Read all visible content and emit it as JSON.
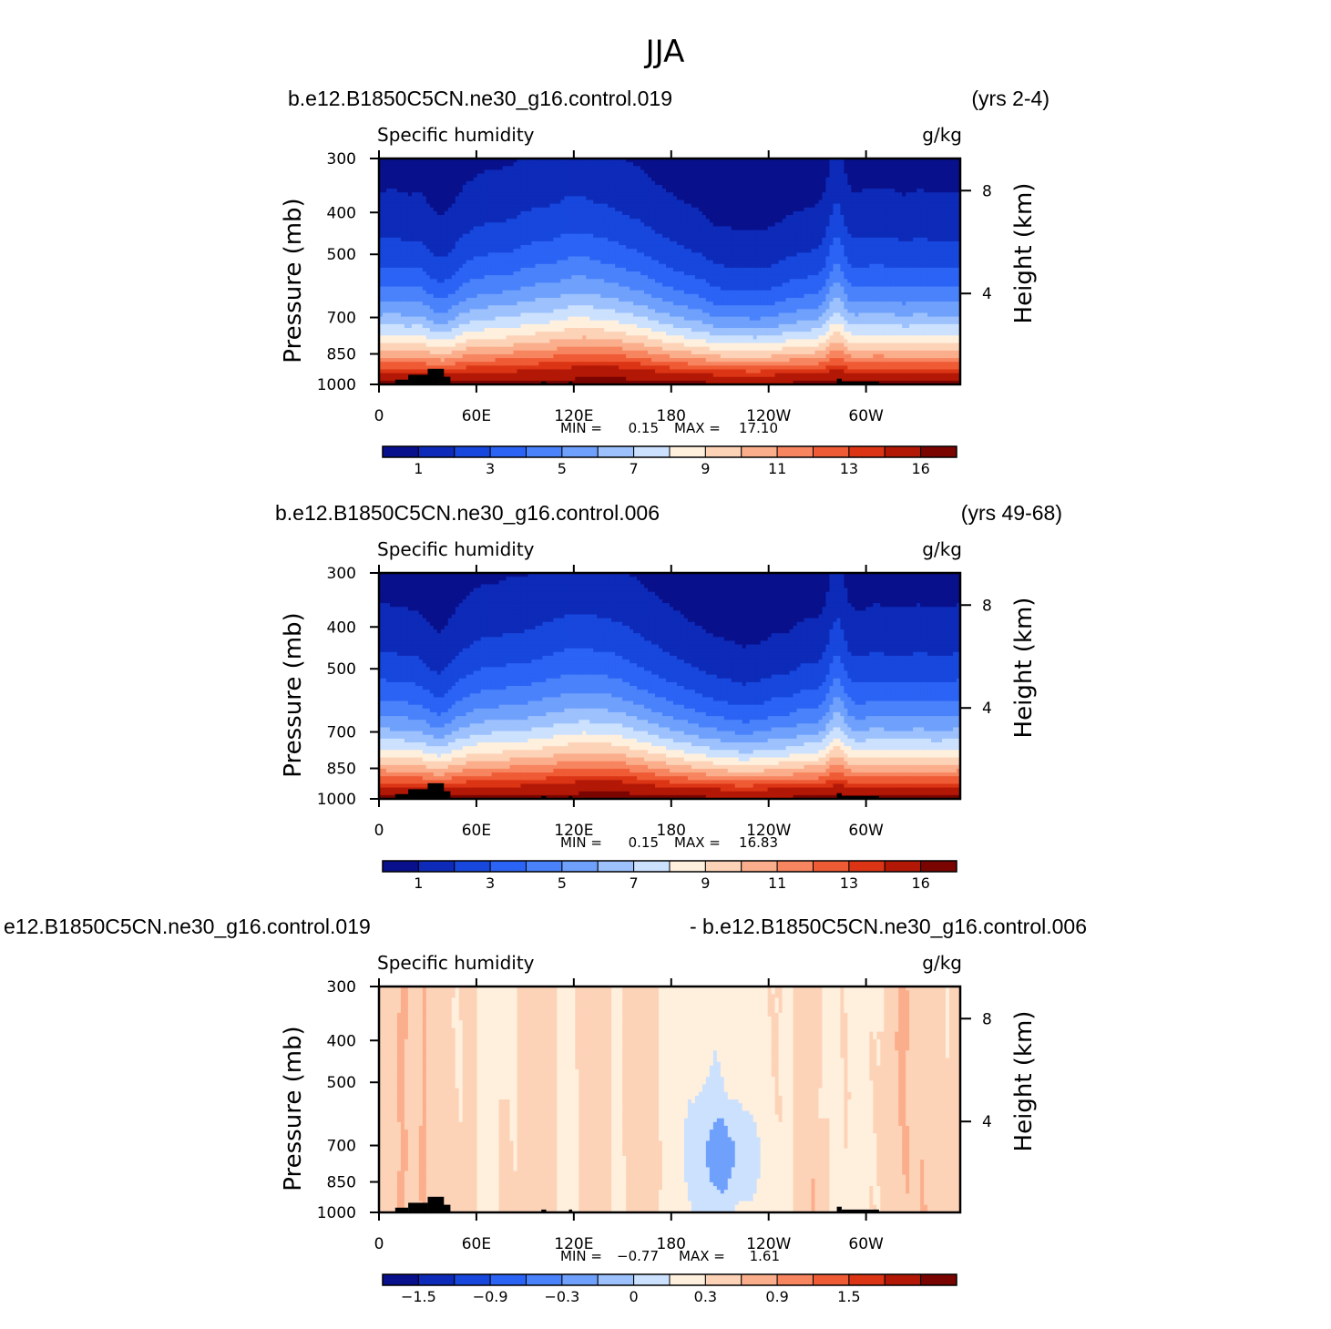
{
  "figure": {
    "title": "JJA"
  },
  "panels": [
    {
      "case_name": "b.e12.B1850C5CN.ne30_g16.control.019",
      "years": "(yrs 2-4)",
      "variable": "Specific humidity",
      "units": "g/kg",
      "ylabel_left": "Pressure (mb)",
      "ylabel_right": "Height (km)",
      "stats": {
        "min_label": "MIN =",
        "min": "0.15",
        "max_label": "MAX =",
        "max": "17.10"
      }
    },
    {
      "case_name": "b.e12.B1850C5CN.ne30_g16.control.006",
      "years": "(yrs 49-68)",
      "variable": "Specific humidity",
      "units": "g/kg",
      "ylabel_left": "Pressure (mb)",
      "ylabel_right": "Height (km)",
      "stats": {
        "min_label": "MIN =",
        "min": "0.15",
        "max_label": "MAX =",
        "max": "16.83"
      }
    },
    {
      "case_name": "e12.B1850C5CN.ne30_g16.control.019",
      "years": "- b.e12.B1850C5CN.ne30_g16.control.006",
      "variable": "Specific humidity",
      "units": "g/kg",
      "ylabel_left": "Pressure (mb)",
      "ylabel_right": "Height (km)",
      "stats": {
        "min_label": "MIN =",
        "min": "−0.77",
        "max_label": "MAX =",
        "max": "1.61"
      }
    }
  ],
  "colors": {
    "palette": [
      "#08108c",
      "#0d2ab8",
      "#1747dc",
      "#2b63f5",
      "#4a82fb",
      "#6fa1fc",
      "#9cc1fd",
      "#cce1fe",
      "#fff0de",
      "#fdd3b8",
      "#fbae8c",
      "#f78560",
      "#ef5b35",
      "#db3515",
      "#b31806",
      "#7a0500"
    ],
    "terrain": "#000000"
  },
  "chart_data": [
    {
      "type": "contour",
      "title": "Specific humidity",
      "units": "g/kg",
      "x_ticks": [
        "0",
        "60E",
        "120E",
        "180",
        "120W",
        "60W"
      ],
      "y_ticks_left": [
        "300",
        "400",
        "500",
        "700",
        "850",
        "1000"
      ],
      "y_ticks_right": [
        "8",
        "4"
      ],
      "ylim": [
        1000,
        300
      ],
      "y_scale": "log",
      "levels": [
        1,
        2,
        3,
        4,
        5,
        6,
        7,
        8,
        9,
        10,
        11,
        12,
        13,
        14,
        16
      ],
      "colorbar_labels": [
        "1",
        "3",
        "5",
        "7",
        "9",
        "11",
        "13",
        "16"
      ],
      "min": 0.15,
      "max": 17.1
    },
    {
      "type": "contour",
      "title": "Specific humidity",
      "units": "g/kg",
      "x_ticks": [
        "0",
        "60E",
        "120E",
        "180",
        "120W",
        "60W"
      ],
      "y_ticks_left": [
        "300",
        "400",
        "500",
        "700",
        "850",
        "1000"
      ],
      "y_ticks_right": [
        "8",
        "4"
      ],
      "ylim": [
        1000,
        300
      ],
      "y_scale": "log",
      "levels": [
        1,
        2,
        3,
        4,
        5,
        6,
        7,
        8,
        9,
        10,
        11,
        12,
        13,
        14,
        16
      ],
      "colorbar_labels": [
        "1",
        "3",
        "5",
        "7",
        "9",
        "11",
        "13",
        "16"
      ],
      "min": 0.15,
      "max": 16.83
    },
    {
      "type": "contour",
      "title": "Specific humidity",
      "units": "g/kg",
      "x_ticks": [
        "0",
        "60E",
        "120E",
        "180",
        "120W",
        "60W"
      ],
      "y_ticks_left": [
        "300",
        "400",
        "500",
        "700",
        "850",
        "1000"
      ],
      "y_ticks_right": [
        "8",
        "4"
      ],
      "ylim": [
        1000,
        300
      ],
      "y_scale": "log",
      "levels": [
        -1.8,
        -1.5,
        -1.2,
        -0.9,
        -0.6,
        -0.3,
        0,
        0.3,
        0.6,
        0.9,
        1.2,
        1.5,
        1.8
      ],
      "colorbar_labels": [
        "−1.5",
        "−0.9",
        "−0.3",
        "0",
        "0.3",
        "0.9",
        "1.5"
      ],
      "min": -0.77,
      "max": 1.61
    }
  ]
}
